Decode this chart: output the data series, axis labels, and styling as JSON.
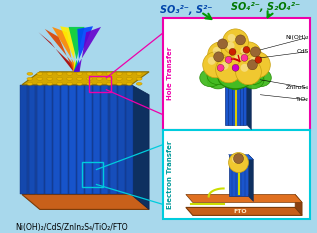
{
  "bg_color": "#a8d8ec",
  "title_bottom": "Ni(OH)₂/CdS/ZnIn₂S₄/TiO₂/FTO",
  "label_top_left": "SO₃²⁻, S²⁻",
  "label_top_right": "SO₄²⁻, S₂O₄²⁻",
  "label_hole": "Hole Transfer",
  "label_electron": "Electron Transfer",
  "label_nioh2": "Ni(OH)₂",
  "label_cds": "CdS",
  "label_znin2s4": "ZnIn₂S₄",
  "label_tio2": "TiO₂",
  "label_fto": "FTO",
  "figsize": [
    3.17,
    2.33
  ],
  "dpi": 100
}
